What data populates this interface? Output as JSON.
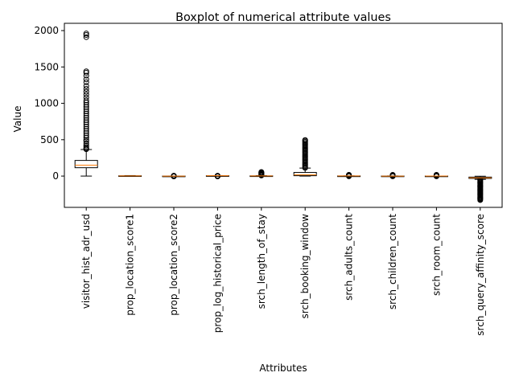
{
  "chart_data": {
    "type": "boxplot",
    "title": "Boxplot of numerical attribute values",
    "xlabel": "Attributes",
    "ylabel": "Value",
    "ylim": [
      -430,
      2100
    ],
    "yticks": [
      0,
      500,
      1000,
      1500,
      2000
    ],
    "grid": false,
    "legend": "none",
    "colors": {
      "box": "#000000",
      "median": "#ff7f0e",
      "background": "#ffffff"
    },
    "boxes": [
      {
        "label": "visitor_hist_adr_usd",
        "whislo": 0,
        "q1": 115,
        "median": 150,
        "q3": 215,
        "whishi": 365,
        "fliers": [
          370,
          380,
          400,
          420,
          450,
          480,
          500,
          530,
          560,
          590,
          620,
          650,
          680,
          710,
          740,
          770,
          800,
          830,
          860,
          890,
          920,
          950,
          980,
          1010,
          1040,
          1080,
          1120,
          1160,
          1200,
          1240,
          1290,
          1330,
          1380,
          1420,
          1440,
          1910,
          1940,
          1960
        ]
      },
      {
        "label": "prop_location_score1",
        "whislo": 0,
        "q1": 1.5,
        "median": 2.5,
        "q3": 4,
        "whishi": 7,
        "fliers": []
      },
      {
        "label": "prop_location_score2",
        "whislo": 0,
        "q1": 0.05,
        "median": 0.1,
        "q3": 0.2,
        "whishi": 0.5,
        "fliers": [
          -5,
          -3,
          1,
          3,
          5
        ]
      },
      {
        "label": "prop_log_historical_price",
        "whislo": 0,
        "q1": 4,
        "median": 5,
        "q3": 5.3,
        "whishi": 6,
        "fliers": [
          -5,
          -3,
          1,
          3,
          5
        ]
      },
      {
        "label": "srch_length_of_stay",
        "whislo": 1,
        "q1": 1,
        "median": 2,
        "q3": 3,
        "whishi": 6,
        "fliers": [
          8,
          14,
          20,
          26,
          32,
          38,
          44,
          50,
          56
        ]
      },
      {
        "label": "srch_booking_window",
        "whislo": 0,
        "q1": 5,
        "median": 17,
        "q3": 50,
        "whishi": 110,
        "fliers": [
          112,
          125,
          140,
          155,
          170,
          185,
          200,
          215,
          230,
          245,
          260,
          275,
          290,
          305,
          320,
          335,
          350,
          365,
          380,
          395,
          410,
          425,
          440,
          455,
          470,
          485,
          495
        ]
      },
      {
        "label": "srch_adults_count",
        "whislo": 1,
        "q1": 2,
        "median": 2,
        "q3": 2,
        "whishi": 3,
        "fliers": [
          -3,
          5,
          8,
          11,
          14,
          18
        ]
      },
      {
        "label": "srch_children_count",
        "whislo": 0,
        "q1": 0,
        "median": 0,
        "q3": 1,
        "whishi": 2,
        "fliers": [
          -3,
          4,
          7,
          10,
          13,
          17
        ]
      },
      {
        "label": "srch_room_count",
        "whislo": 1,
        "q1": 1,
        "median": 1,
        "q3": 1,
        "whishi": 1,
        "fliers": [
          -3,
          4,
          7,
          10,
          13,
          18
        ]
      },
      {
        "label": "srch_query_affinity_score",
        "whislo": -45,
        "q1": -32,
        "median": -24,
        "q3": -14,
        "whishi": -2,
        "fliers": [
          -50,
          -60,
          -70,
          -80,
          -90,
          -100,
          -110,
          -120,
          -130,
          -140,
          -150,
          -160,
          -170,
          -180,
          -190,
          -200,
          -210,
          -220,
          -230,
          -240,
          -250,
          -260,
          -270,
          -280,
          -290,
          -300,
          -310,
          -320,
          -330
        ]
      }
    ]
  }
}
